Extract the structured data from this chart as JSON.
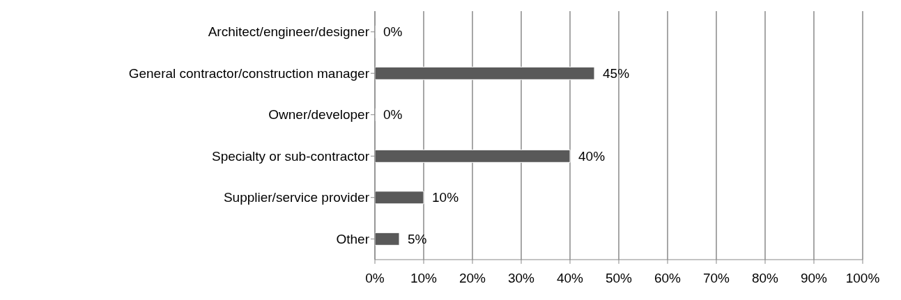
{
  "chart_data": {
    "type": "bar",
    "orientation": "horizontal",
    "categories": [
      "Architect/engineer/designer",
      "General contractor/construction manager",
      "Owner/developer",
      "Specialty or sub-contractor",
      "Supplier/service provider",
      "Other"
    ],
    "values": [
      0,
      45,
      0,
      40,
      10,
      5
    ],
    "value_labels": [
      "0%",
      "45%",
      "0%",
      "40%",
      "10%",
      "5%"
    ],
    "color": "#595959",
    "xlim": [
      0,
      100
    ],
    "xticks": [
      {
        "value": 0,
        "label": "0%"
      },
      {
        "value": 10,
        "label": "10%"
      },
      {
        "value": 20,
        "label": "20%"
      },
      {
        "value": 30,
        "label": "30%"
      },
      {
        "value": 40,
        "label": "40%"
      },
      {
        "value": 50,
        "label": "50%"
      },
      {
        "value": 60,
        "label": "60%"
      },
      {
        "value": 70,
        "label": "70%"
      },
      {
        "value": 80,
        "label": "80%"
      },
      {
        "value": 90,
        "label": "90%"
      },
      {
        "value": 100,
        "label": "100%"
      }
    ],
    "grid": "x"
  }
}
